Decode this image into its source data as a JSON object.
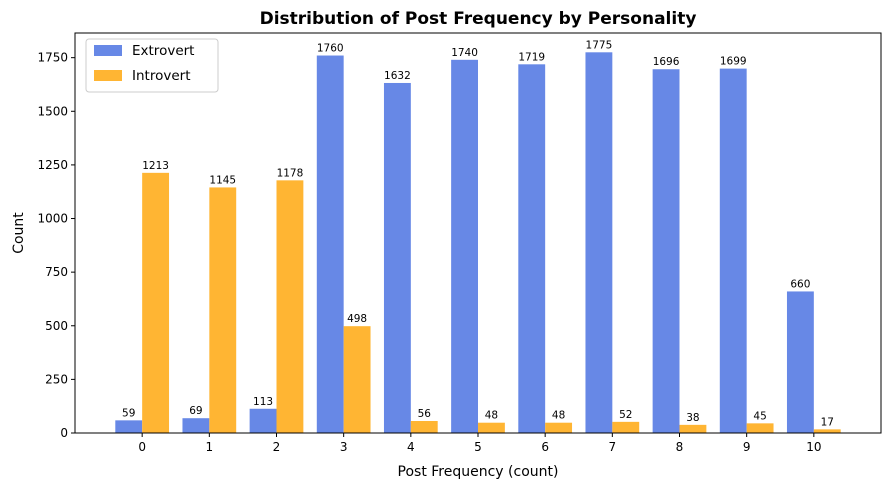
{
  "chart_data": {
    "type": "bar",
    "title": "Distribution of Post Frequency by Personality",
    "xlabel": "Post Frequency (count)",
    "ylabel": "Count",
    "categories": [
      "0",
      "1",
      "2",
      "3",
      "4",
      "5",
      "6",
      "7",
      "8",
      "9",
      "10"
    ],
    "series": [
      {
        "name": "Extrovert",
        "color": "#6788e6",
        "values": [
          59,
          69,
          113,
          1760,
          1632,
          1740,
          1719,
          1775,
          1696,
          1699,
          660
        ]
      },
      {
        "name": "Introvert",
        "color": "#ffb533",
        "values": [
          1213,
          1145,
          1178,
          498,
          56,
          48,
          48,
          52,
          38,
          45,
          17
        ]
      }
    ],
    "yticks": [
      0,
      250,
      500,
      750,
      1000,
      1250,
      1500,
      1750
    ],
    "ylim": [
      0,
      1865
    ],
    "xlim": [
      -1,
      11
    ],
    "legend_position": "top-left",
    "grid": false,
    "data_labels": true
  }
}
